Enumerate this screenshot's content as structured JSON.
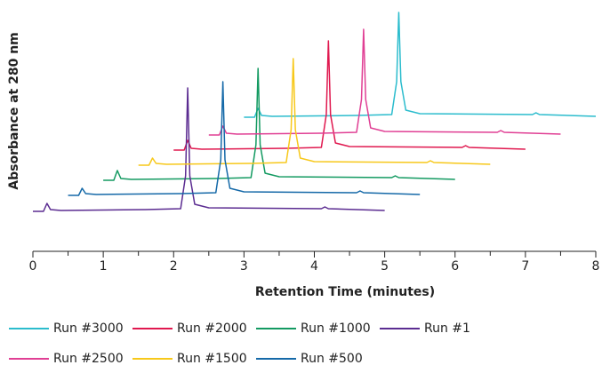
{
  "chart_data": {
    "type": "line",
    "y_label": "Absorbance at 280 nm",
    "x_label": "Retention Time (minutes)",
    "xlim": [
      0,
      8
    ],
    "xticks": [
      0,
      1,
      2,
      3,
      4,
      5,
      6,
      7,
      8
    ],
    "xminor": [
      0.5,
      1.5,
      2.5,
      3.5,
      4.5,
      5.5,
      6.5,
      7.5
    ],
    "ylim": [
      0,
      270
    ],
    "series": [
      {
        "name": "Run #3000",
        "color": "#2bbccd",
        "x": [
          3.0,
          3.15,
          3.2,
          3.25,
          3.4,
          4.6,
          5.1,
          5.17,
          5.2,
          5.23,
          5.3,
          5.5,
          7.1,
          7.15,
          7.2,
          8.0
        ],
        "values": [
          151,
          151,
          161,
          153,
          152,
          153,
          154,
          191,
          269,
          191,
          159,
          155,
          154,
          156,
          154,
          152
        ]
      },
      {
        "name": "Run #2000",
        "color": "#e0184f",
        "x": [
          2.0,
          2.15,
          2.2,
          2.25,
          2.4,
          3.6,
          4.1,
          4.17,
          4.2,
          4.23,
          4.3,
          4.5,
          6.1,
          6.15,
          6.2,
          7.0
        ],
        "values": [
          114,
          114,
          125,
          116,
          115,
          116,
          117,
          154,
          237,
          154,
          122,
          118,
          117,
          119,
          117,
          115
        ]
      },
      {
        "name": "Run #1000",
        "color": "#139a61",
        "x": [
          1.0,
          1.15,
          1.2,
          1.25,
          1.4,
          2.6,
          3.1,
          3.17,
          3.2,
          3.23,
          3.3,
          3.5,
          5.1,
          5.15,
          5.2,
          6.0
        ],
        "values": [
          80,
          80,
          91,
          82,
          81,
          82,
          83,
          120,
          206,
          120,
          88,
          84,
          83,
          85,
          83,
          81
        ]
      },
      {
        "name": "Run #1",
        "color": "#5b2c91",
        "x": [
          0.0,
          0.15,
          0.2,
          0.25,
          0.4,
          1.6,
          2.1,
          2.17,
          2.2,
          2.23,
          2.3,
          2.5,
          4.1,
          4.15,
          4.2,
          5.0
        ],
        "values": [
          45,
          45,
          54,
          47,
          46,
          47,
          48,
          85,
          184,
          85,
          53,
          49,
          48,
          50,
          48,
          46
        ]
      },
      {
        "name": "Run #2500",
        "color": "#e03f94",
        "x": [
          2.5,
          2.65,
          2.7,
          2.75,
          2.9,
          4.1,
          4.6,
          4.67,
          4.7,
          4.73,
          4.8,
          5.0,
          6.6,
          6.65,
          6.7,
          7.5
        ],
        "values": [
          131,
          131,
          141,
          133,
          132,
          133,
          134,
          171,
          250,
          171,
          139,
          135,
          134,
          136,
          134,
          132
        ]
      },
      {
        "name": "Run #1500",
        "color": "#f7c81a",
        "x": [
          1.5,
          1.65,
          1.7,
          1.75,
          1.9,
          3.1,
          3.6,
          3.67,
          3.7,
          3.73,
          3.8,
          4.0,
          5.6,
          5.65,
          5.7,
          6.5
        ],
        "values": [
          97,
          97,
          105,
          99,
          98,
          99,
          100,
          137,
          217,
          137,
          105,
          101,
          100,
          102,
          100,
          98
        ]
      },
      {
        "name": "Run #500",
        "color": "#1569a8",
        "x": [
          0.5,
          0.65,
          0.7,
          0.75,
          0.9,
          2.1,
          2.6,
          2.67,
          2.7,
          2.73,
          2.8,
          3.0,
          4.6,
          4.65,
          4.7,
          5.5
        ],
        "values": [
          63,
          63,
          71,
          65,
          64,
          65,
          66,
          103,
          191,
          103,
          71,
          67,
          66,
          68,
          66,
          64
        ]
      }
    ]
  }
}
